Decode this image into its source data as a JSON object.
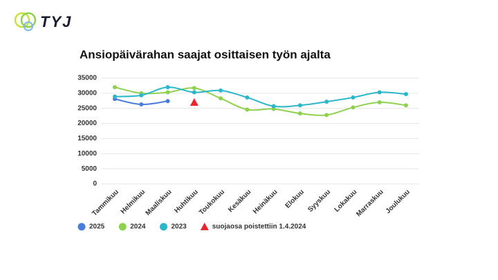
{
  "logo": "TYJ",
  "chart_data": {
    "type": "line",
    "title": "Ansiopäivärahan saajat osittaisen työn ajalta",
    "categories": [
      "Tammikuu",
      "Helmikuu",
      "Maaliskuu",
      "Huhtikuu",
      "Toukokuu",
      "Kesäkuu",
      "Heinäkuu",
      "Elokuu",
      "Syyskuu",
      "Lokakuu",
      "Marraskuu",
      "Joulukuu"
    ],
    "series": [
      {
        "name": "2025",
        "color": "#4a7ddb",
        "marker": "circle",
        "values": [
          28100,
          26300,
          27400,
          null,
          null,
          null,
          null,
          null,
          null,
          null,
          null,
          null
        ]
      },
      {
        "name": "2024",
        "color": "#8fd14f",
        "marker": "circle",
        "values": [
          32000,
          30000,
          30300,
          31700,
          28300,
          24600,
          24800,
          23300,
          22800,
          25300,
          27000,
          26000
        ]
      },
      {
        "name": "2023",
        "color": "#2ab7ca",
        "marker": "circle",
        "values": [
          28900,
          29300,
          32000,
          30300,
          30900,
          28600,
          25700,
          26000,
          27200,
          28600,
          30300,
          29700
        ]
      },
      {
        "name": "suojaosa poistettiin 1.4.2024",
        "color": "#e8262b",
        "marker": "triangle",
        "values": [
          null,
          null,
          null,
          27000,
          null,
          null,
          null,
          null,
          null,
          null,
          null,
          null
        ]
      }
    ],
    "ylim": [
      0,
      35000
    ],
    "yticks": [
      0,
      5000,
      10000,
      15000,
      20000,
      25000,
      30000,
      35000
    ],
    "grid": true,
    "legend": "bottom"
  }
}
